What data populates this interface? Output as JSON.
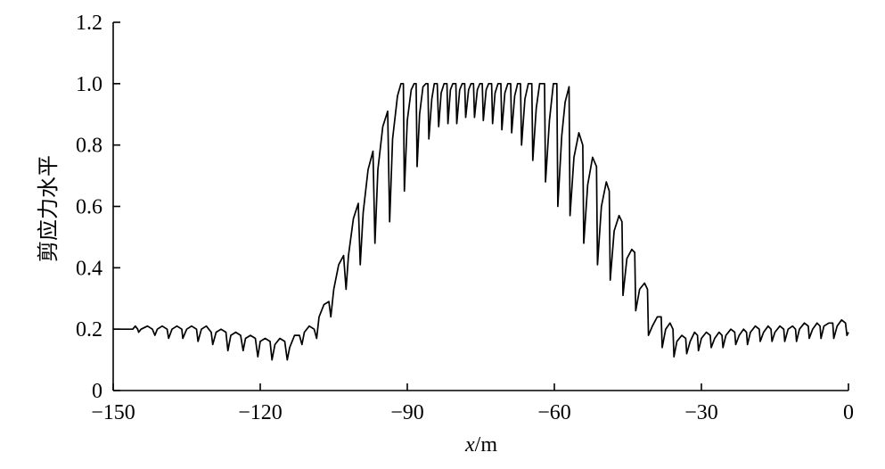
{
  "chart_data": {
    "type": "line",
    "xlabel_var": "x",
    "xlabel_unit": "/m",
    "ylabel": "剪应力水平",
    "xlim": [
      -150,
      0
    ],
    "ylim": [
      0,
      1.2
    ],
    "xticks": [
      -150,
      -120,
      -90,
      -60,
      -30,
      0
    ],
    "xtick_labels": [
      "−150",
      "−120",
      "−90",
      "−60",
      "−30",
      "0"
    ],
    "yticks": [
      0,
      0.2,
      0.4,
      0.6,
      0.8,
      1.0,
      1.2
    ],
    "ytick_labels": [
      "0",
      "0.2",
      "0.4",
      "0.6",
      "0.8",
      "1.0",
      "1.2"
    ],
    "grid": false,
    "series": [
      {
        "color": "#000000",
        "points": [
          [
            -150,
            0.2
          ],
          [
            -146,
            0.2
          ],
          [
            -145.5,
            0.21
          ],
          [
            -145,
            0.2
          ],
          [
            -144.8,
            0.19
          ],
          [
            -144.3,
            0.2
          ],
          [
            -143,
            0.21
          ],
          [
            -142,
            0.2
          ],
          [
            -141.5,
            0.18
          ],
          [
            -141,
            0.2
          ],
          [
            -140,
            0.21
          ],
          [
            -139,
            0.2
          ],
          [
            -138.7,
            0.17
          ],
          [
            -138,
            0.2
          ],
          [
            -137,
            0.21
          ],
          [
            -136,
            0.2
          ],
          [
            -135.8,
            0.17
          ],
          [
            -135,
            0.2
          ],
          [
            -134,
            0.21
          ],
          [
            -133,
            0.2
          ],
          [
            -132.7,
            0.16
          ],
          [
            -132,
            0.2
          ],
          [
            -131,
            0.21
          ],
          [
            -130,
            0.19
          ],
          [
            -129.7,
            0.15
          ],
          [
            -129,
            0.19
          ],
          [
            -128,
            0.2
          ],
          [
            -127,
            0.19
          ],
          [
            -126.6,
            0.13
          ],
          [
            -126,
            0.18
          ],
          [
            -125,
            0.19
          ],
          [
            -124,
            0.18
          ],
          [
            -123.5,
            0.13
          ],
          [
            -123,
            0.17
          ],
          [
            -122,
            0.18
          ],
          [
            -121,
            0.17
          ],
          [
            -120.5,
            0.11
          ],
          [
            -120,
            0.16
          ],
          [
            -119,
            0.17
          ],
          [
            -118,
            0.16
          ],
          [
            -117.6,
            0.1
          ],
          [
            -117,
            0.15
          ],
          [
            -116,
            0.17
          ],
          [
            -115,
            0.16
          ],
          [
            -114.5,
            0.1
          ],
          [
            -114,
            0.14
          ],
          [
            -113,
            0.18
          ],
          [
            -112,
            0.18
          ],
          [
            -111.5,
            0.15
          ],
          [
            -111,
            0.19
          ],
          [
            -110,
            0.21
          ],
          [
            -109,
            0.2
          ],
          [
            -108.5,
            0.17
          ],
          [
            -108,
            0.24
          ],
          [
            -107,
            0.28
          ],
          [
            -106,
            0.29
          ],
          [
            -105.6,
            0.24
          ],
          [
            -105,
            0.33
          ],
          [
            -104,
            0.41
          ],
          [
            -103,
            0.44
          ],
          [
            -102.5,
            0.33
          ],
          [
            -102,
            0.44
          ],
          [
            -101,
            0.56
          ],
          [
            -100,
            0.61
          ],
          [
            -99.6,
            0.41
          ],
          [
            -99,
            0.58
          ],
          [
            -98,
            0.72
          ],
          [
            -97,
            0.78
          ],
          [
            -96.6,
            0.48
          ],
          [
            -96,
            0.72
          ],
          [
            -95,
            0.86
          ],
          [
            -94,
            0.91
          ],
          [
            -93.6,
            0.55
          ],
          [
            -93,
            0.82
          ],
          [
            -92,
            0.96
          ],
          [
            -91.3,
            1.0
          ],
          [
            -90.8,
            1.0
          ],
          [
            -90.6,
            0.65
          ],
          [
            -90,
            0.88
          ],
          [
            -89.2,
            0.98
          ],
          [
            -88.6,
            1.0
          ],
          [
            -88.2,
            1.0
          ],
          [
            -88,
            0.73
          ],
          [
            -87.5,
            0.9
          ],
          [
            -86.8,
            0.99
          ],
          [
            -86.2,
            1.0
          ],
          [
            -85.8,
            1.0
          ],
          [
            -85.6,
            0.82
          ],
          [
            -85,
            0.95
          ],
          [
            -84.5,
            1.0
          ],
          [
            -83.9,
            1.0
          ],
          [
            -83.6,
            0.86
          ],
          [
            -83.1,
            0.97
          ],
          [
            -82.5,
            1.0
          ],
          [
            -81.9,
            1.0
          ],
          [
            -81.7,
            0.87
          ],
          [
            -81.2,
            0.98
          ],
          [
            -80.7,
            1.0
          ],
          [
            -80.1,
            1.0
          ],
          [
            -79.9,
            0.87
          ],
          [
            -79.3,
            0.98
          ],
          [
            -78.8,
            1.0
          ],
          [
            -78.3,
            1.0
          ],
          [
            -78.1,
            0.89
          ],
          [
            -77.5,
            0.98
          ],
          [
            -77.0,
            1.0
          ],
          [
            -76.5,
            1.0
          ],
          [
            -76.3,
            0.89
          ],
          [
            -75.7,
            0.98
          ],
          [
            -75.2,
            1.0
          ],
          [
            -74.7,
            1.0
          ],
          [
            -74.5,
            0.88
          ],
          [
            -73.9,
            0.98
          ],
          [
            -73.4,
            1.0
          ],
          [
            -72.8,
            1.0
          ],
          [
            -72.6,
            0.87
          ],
          [
            -72.1,
            0.97
          ],
          [
            -71.5,
            1.0
          ],
          [
            -70.9,
            1.0
          ],
          [
            -70.7,
            0.85
          ],
          [
            -70.1,
            0.97
          ],
          [
            -69.5,
            1.0
          ],
          [
            -68.9,
            1.0
          ],
          [
            -68.7,
            0.84
          ],
          [
            -68.1,
            0.96
          ],
          [
            -67.5,
            1.0
          ],
          [
            -66.9,
            1.0
          ],
          [
            -66.7,
            0.8
          ],
          [
            -66.0,
            0.95
          ],
          [
            -65.3,
            1.0
          ],
          [
            -64.6,
            1.0
          ],
          [
            -64.4,
            0.75
          ],
          [
            -63.7,
            0.92
          ],
          [
            -63.0,
            1.0
          ],
          [
            -62.0,
            1.0
          ],
          [
            -61.8,
            0.68
          ],
          [
            -61.0,
            0.88
          ],
          [
            -60.2,
            1.0
          ],
          [
            -59.5,
            1.0
          ],
          [
            -59.3,
            0.6
          ],
          [
            -58.5,
            0.83
          ],
          [
            -57.8,
            0.94
          ],
          [
            -57.0,
            0.99
          ],
          [
            -56.8,
            0.57
          ],
          [
            -56.0,
            0.76
          ],
          [
            -55.0,
            0.84
          ],
          [
            -54.2,
            0.8
          ],
          [
            -54.0,
            0.48
          ],
          [
            -53.2,
            0.67
          ],
          [
            -52.2,
            0.76
          ],
          [
            -51.4,
            0.73
          ],
          [
            -51.2,
            0.41
          ],
          [
            -50.4,
            0.6
          ],
          [
            -49.4,
            0.68
          ],
          [
            -48.8,
            0.65
          ],
          [
            -48.6,
            0.36
          ],
          [
            -47.8,
            0.52
          ],
          [
            -46.8,
            0.57
          ],
          [
            -46.2,
            0.55
          ],
          [
            -46.0,
            0.31
          ],
          [
            -45.2,
            0.43
          ],
          [
            -44.2,
            0.46
          ],
          [
            -43.6,
            0.45
          ],
          [
            -43.4,
            0.26
          ],
          [
            -42.6,
            0.33
          ],
          [
            -41.6,
            0.35
          ],
          [
            -41.0,
            0.33
          ],
          [
            -40.8,
            0.18
          ],
          [
            -40.0,
            0.21
          ],
          [
            -39.0,
            0.24
          ],
          [
            -38.2,
            0.24
          ],
          [
            -38.0,
            0.14
          ],
          [
            -37.3,
            0.2
          ],
          [
            -36.4,
            0.22
          ],
          [
            -35.8,
            0.2
          ],
          [
            -35.6,
            0.11
          ],
          [
            -35.0,
            0.16
          ],
          [
            -34.0,
            0.18
          ],
          [
            -33.2,
            0.17
          ],
          [
            -33.0,
            0.12
          ],
          [
            -32.3,
            0.16
          ],
          [
            -31.4,
            0.19
          ],
          [
            -30.8,
            0.18
          ],
          [
            -30.6,
            0.13
          ],
          [
            -30.0,
            0.17
          ],
          [
            -29.0,
            0.19
          ],
          [
            -28.2,
            0.18
          ],
          [
            -28.0,
            0.14
          ],
          [
            -27.3,
            0.17
          ],
          [
            -26.4,
            0.19
          ],
          [
            -25.8,
            0.18
          ],
          [
            -25.6,
            0.14
          ],
          [
            -25.0,
            0.18
          ],
          [
            -24.0,
            0.2
          ],
          [
            -23.2,
            0.19
          ],
          [
            -23.0,
            0.15
          ],
          [
            -22.3,
            0.18
          ],
          [
            -21.4,
            0.2
          ],
          [
            -20.8,
            0.19
          ],
          [
            -20.6,
            0.15
          ],
          [
            -20.0,
            0.19
          ],
          [
            -19.0,
            0.21
          ],
          [
            -18.2,
            0.2
          ],
          [
            -18.0,
            0.16
          ],
          [
            -17.3,
            0.19
          ],
          [
            -16.4,
            0.21
          ],
          [
            -15.8,
            0.2
          ],
          [
            -15.6,
            0.16
          ],
          [
            -15.0,
            0.19
          ],
          [
            -14.0,
            0.21
          ],
          [
            -13.2,
            0.2
          ],
          [
            -13.0,
            0.16
          ],
          [
            -12.3,
            0.2
          ],
          [
            -11.4,
            0.21
          ],
          [
            -10.8,
            0.2
          ],
          [
            -10.6,
            0.16
          ],
          [
            -10.0,
            0.2
          ],
          [
            -9.0,
            0.22
          ],
          [
            -8.2,
            0.21
          ],
          [
            -8.0,
            0.17
          ],
          [
            -7.3,
            0.2
          ],
          [
            -6.4,
            0.22
          ],
          [
            -5.8,
            0.21
          ],
          [
            -5.6,
            0.17
          ],
          [
            -5.0,
            0.21
          ],
          [
            -4.0,
            0.22
          ],
          [
            -3.2,
            0.22
          ],
          [
            -3.0,
            0.17
          ],
          [
            -2.3,
            0.21
          ],
          [
            -1.4,
            0.23
          ],
          [
            -0.6,
            0.22
          ],
          [
            -0.3,
            0.18
          ],
          [
            0,
            0.19
          ]
        ]
      }
    ]
  }
}
